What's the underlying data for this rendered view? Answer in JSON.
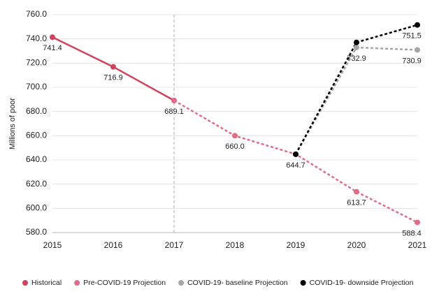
{
  "chart_data": {
    "type": "line",
    "y_label": "Millions of poor",
    "xlim": [
      2015,
      2021
    ],
    "xticks": [
      2015,
      2016,
      2017,
      2018,
      2019,
      2020,
      2021
    ],
    "ylim": [
      580,
      760
    ],
    "yticks": [
      {
        "value": 580,
        "label": "580.0"
      },
      {
        "value": 600,
        "label": "600.0"
      },
      {
        "value": 620,
        "label": "620.0"
      },
      {
        "value": 640,
        "label": "640.0"
      },
      {
        "value": 660,
        "label": "660.0"
      },
      {
        "value": 680,
        "label": "680.0"
      },
      {
        "value": 700,
        "label": "700.0"
      },
      {
        "value": 720,
        "label": "720.0"
      },
      {
        "value": 740,
        "label": "740.0"
      },
      {
        "value": 760,
        "label": "760.0"
      }
    ],
    "grid": true,
    "vline": 2017,
    "legend": "bottom",
    "series": [
      {
        "name": "Historical",
        "color": "#d0435e",
        "dashed": false,
        "x": [
          2015,
          2016,
          2017
        ],
        "values": [
          741.4,
          716.9,
          689.1
        ],
        "value_labels": [
          "741.4",
          "716.9",
          "689.1"
        ]
      },
      {
        "name": "Pre-COVID-19 Projection",
        "color": "#e06c87",
        "dashed": true,
        "x": [
          2017,
          2018,
          2019,
          2020,
          2021
        ],
        "values": [
          689.1,
          660,
          644.7,
          613.7,
          588.4
        ],
        "value_labels": [
          null,
          "660.0",
          "644.7",
          "613.7",
          "588.4"
        ]
      },
      {
        "name": "COVID-19- baseline Projection",
        "color": "#a6a6a6",
        "dashed": true,
        "x": [
          2019,
          2020,
          2021
        ],
        "values": [
          644.7,
          732.9,
          730.9
        ],
        "value_labels": [
          null,
          "732.9",
          "730.9"
        ]
      },
      {
        "name": "COVID-19- downside Projection",
        "color": "#000000",
        "dashed": true,
        "x": [
          2019,
          2020,
          2021
        ],
        "values": [
          644.7,
          737.1,
          751.5
        ],
        "value_labels": [
          null,
          null,
          "751.5"
        ]
      }
    ]
  }
}
